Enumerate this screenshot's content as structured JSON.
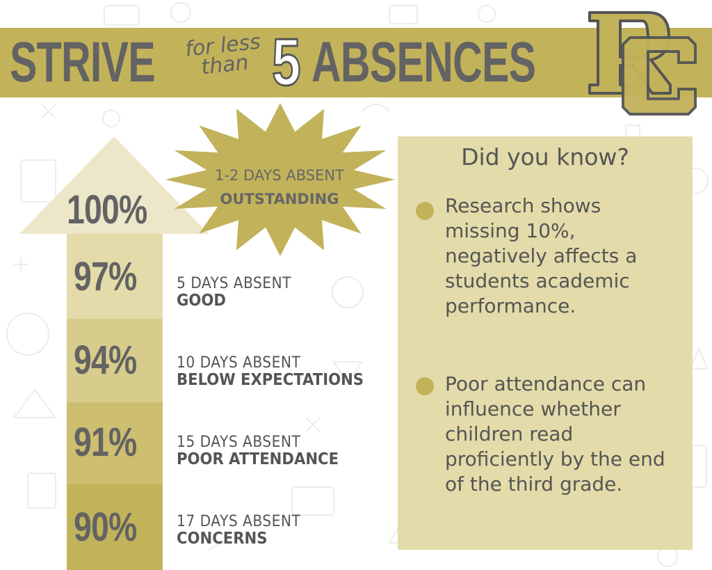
{
  "header": {
    "strive": "STRIVE",
    "for_less": "for less",
    "than": "than",
    "number": "5",
    "absences": "ABSENCES",
    "logo_icon": "rc-monogram-logo"
  },
  "colors": {
    "gold": "#c2b25a",
    "gold_light": "#e3dba9",
    "gray_text": "#636363",
    "arrow_tints": [
      "#ede7c9",
      "#e3dba9",
      "#d8cc8c",
      "#cdbe70",
      "#c2b25a"
    ]
  },
  "top_level": {
    "percent": "100%",
    "days": "1-2 DAYS ABSENT",
    "rating": "OUTSTANDING"
  },
  "levels": [
    {
      "percent": "97%",
      "days": "5 DAYS ABSENT",
      "rating": "GOOD"
    },
    {
      "percent": "94%",
      "days": "10 DAYS ABSENT",
      "rating": "BELOW EXPECTATIONS"
    },
    {
      "percent": "91%",
      "days": "15 DAYS ABSENT",
      "rating": "POOR ATTENDANCE"
    },
    {
      "percent": "90%",
      "days": "17 DAYS ABSENT",
      "rating": "CONCERNS"
    }
  ],
  "panel": {
    "title": "Did you know?",
    "facts": [
      "Research shows missing 10%, negatively affects a students academic performance.",
      "Poor attendance can influence whether children read proficiently by the end of the third grade."
    ]
  }
}
